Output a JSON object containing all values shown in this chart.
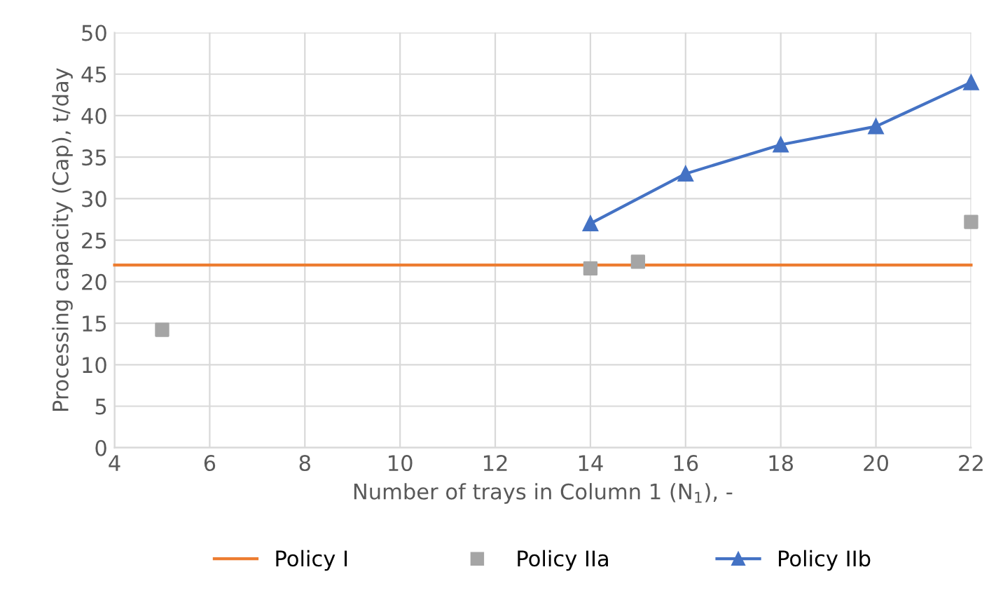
{
  "chart_data": {
    "type": "line",
    "xlabel": "Number of trays in Column 1 (N$_{1}$), -",
    "ylabel": "Processing capacity (Cap), t/day",
    "xlim": [
      4,
      22
    ],
    "xticks": [
      4,
      6,
      8,
      10,
      12,
      14,
      16,
      18,
      20,
      22
    ],
    "ylim": [
      0,
      50
    ],
    "yticks": [
      0,
      5,
      10,
      15,
      20,
      25,
      30,
      35,
      40,
      45,
      50
    ],
    "grid": true,
    "legend": "bottom",
    "series": [
      {
        "name": "Policy I",
        "color": "#ed7d31",
        "marker": "none",
        "x": [
          4,
          22
        ],
        "values": [
          22,
          22
        ]
      },
      {
        "name": "Policy IIa",
        "type": "scatter",
        "color": "#a5a5a5",
        "marker": "square",
        "x": [
          5,
          14,
          15,
          22
        ],
        "values": [
          14.2,
          21.6,
          22.4,
          27.2
        ]
      },
      {
        "name": "Policy IIb",
        "color": "#4472c4",
        "marker": "triangle",
        "x": [
          14,
          16,
          18,
          20,
          22
        ],
        "values": [
          27,
          33,
          36.5,
          38.7,
          44
        ]
      }
    ]
  }
}
